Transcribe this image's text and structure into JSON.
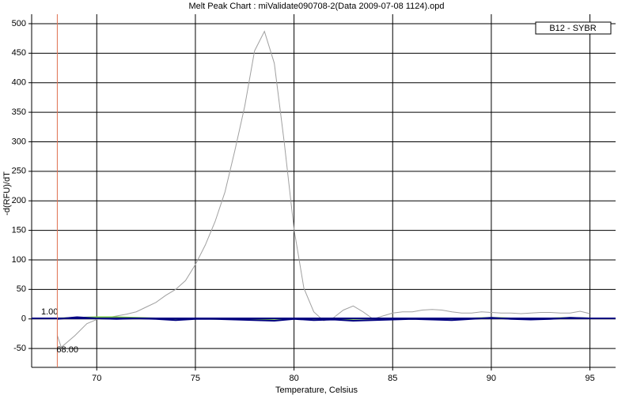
{
  "chart_data": {
    "type": "line",
    "title": "Melt Peak Chart : miValidate090708-2(Data 2009-07-08 1124).opd",
    "xlabel": "Temperature, Celsius",
    "ylabel": "-d(RFU)/dT",
    "legend": "B12 - SYBR",
    "legend_position": "upper right",
    "xlim": [
      66.7,
      96.3
    ],
    "ylim": [
      -82,
      516
    ],
    "xticks": [
      70,
      75,
      80,
      85,
      90,
      95
    ],
    "yticks": [
      -50,
      0,
      50,
      100,
      150,
      200,
      250,
      300,
      350,
      400,
      450,
      500
    ],
    "grid": true,
    "threshold": {
      "value": 1,
      "label": "1.00",
      "color": "#000080"
    },
    "marker": {
      "value": 68,
      "label": "68.00",
      "color": "#e07050"
    },
    "series": [
      {
        "color": "#a0a0a0",
        "x": [
          68,
          68.2,
          68.9,
          69.5,
          70,
          70.5,
          71,
          71.5,
          72,
          72.5,
          73,
          73.5,
          74,
          74.5,
          75,
          75.5,
          76,
          76.5,
          77,
          77.5,
          78,
          78.5,
          79,
          79.5,
          80,
          80.5,
          81,
          81.5,
          82,
          82.5,
          83,
          83.5,
          84,
          84.5,
          85,
          85.5,
          86,
          86.5,
          87,
          87.5,
          88,
          88.5,
          89,
          89.5,
          90,
          90.5,
          91,
          91.5,
          92,
          92.5,
          93,
          93.5,
          94,
          94.5,
          95
        ],
        "values": [
          -28,
          -48,
          -28,
          -8,
          -1,
          2,
          5,
          8,
          12,
          20,
          28,
          40,
          50,
          65,
          92,
          125,
          165,
          215,
          285,
          360,
          454,
          487,
          433,
          300,
          152,
          52,
          12,
          -3,
          2,
          15,
          22,
          12,
          0,
          5,
          10,
          12,
          12,
          15,
          16,
          15,
          12,
          10,
          10,
          12,
          11,
          10,
          10,
          9,
          10,
          11,
          11,
          10,
          10,
          13,
          9
        ]
      },
      {
        "color": "#70c040",
        "x": [
          68,
          69,
          70,
          71,
          72,
          73,
          74,
          75,
          76,
          77,
          78,
          79,
          80,
          81,
          82,
          83,
          84,
          85,
          86,
          87,
          88,
          89,
          90,
          91,
          92,
          93,
          94,
          95
        ],
        "values": [
          1,
          2,
          3,
          3,
          2,
          1,
          0,
          1,
          0,
          1,
          -1,
          0,
          1,
          0,
          -1,
          0,
          1,
          1,
          0,
          1,
          0,
          1,
          2,
          1,
          0,
          1,
          2,
          1
        ]
      },
      {
        "color": "#000080",
        "x": [
          68,
          69,
          70,
          71,
          72,
          73,
          74,
          75,
          76,
          77,
          78,
          79,
          80,
          81,
          82,
          83,
          84,
          85,
          86,
          87,
          88,
          89,
          90,
          91,
          92,
          93,
          94,
          95
        ],
        "values": [
          0,
          3,
          1,
          0,
          1,
          0,
          -2,
          0,
          0,
          -1,
          -2,
          -3,
          0,
          -2,
          -1,
          -3,
          -2,
          -1,
          0,
          -1,
          -2,
          0,
          2,
          0,
          -1,
          0,
          2,
          1
        ]
      }
    ]
  }
}
